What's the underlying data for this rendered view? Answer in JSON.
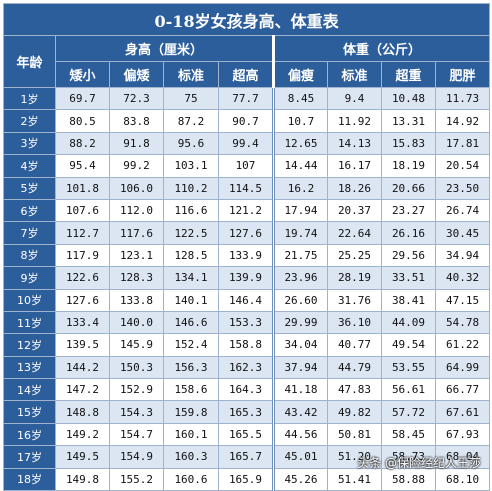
{
  "title": "0-18岁女孩身高、体重表",
  "age_header": "年龄",
  "height_group": "身高（厘米）",
  "weight_group": "体重（公斤）",
  "height_cols": [
    "矮小",
    "偏矮",
    "标准",
    "超高"
  ],
  "weight_cols": [
    "偏瘦",
    "标准",
    "超重",
    "肥胖"
  ],
  "rows": [
    {
      "age": "1岁",
      "h": [
        "69.7",
        "72.3",
        "75",
        "77.7"
      ],
      "w": [
        "8.45",
        "9.4",
        "10.48",
        "11.73"
      ]
    },
    {
      "age": "2岁",
      "h": [
        "80.5",
        "83.8",
        "87.2",
        "90.7"
      ],
      "w": [
        "10.7",
        "11.92",
        "13.31",
        "14.92"
      ]
    },
    {
      "age": "3岁",
      "h": [
        "88.2",
        "91.8",
        "95.6",
        "99.4"
      ],
      "w": [
        "12.65",
        "14.13",
        "15.83",
        "17.81"
      ]
    },
    {
      "age": "4岁",
      "h": [
        "95.4",
        "99.2",
        "103.1",
        "107"
      ],
      "w": [
        "14.44",
        "16.17",
        "18.19",
        "20.54"
      ]
    },
    {
      "age": "5岁",
      "h": [
        "101.8",
        "106.0",
        "110.2",
        "114.5"
      ],
      "w": [
        "16.2",
        "18.26",
        "20.66",
        "23.50"
      ]
    },
    {
      "age": "6岁",
      "h": [
        "107.6",
        "112.0",
        "116.6",
        "121.2"
      ],
      "w": [
        "17.94",
        "20.37",
        "23.27",
        "26.74"
      ]
    },
    {
      "age": "7岁",
      "h": [
        "112.7",
        "117.6",
        "122.5",
        "127.6"
      ],
      "w": [
        "19.74",
        "22.64",
        "26.16",
        "30.45"
      ]
    },
    {
      "age": "8岁",
      "h": [
        "117.9",
        "123.1",
        "128.5",
        "133.9"
      ],
      "w": [
        "21.75",
        "25.25",
        "29.56",
        "34.94"
      ]
    },
    {
      "age": "9岁",
      "h": [
        "122.6",
        "128.3",
        "134.1",
        "139.9"
      ],
      "w": [
        "23.96",
        "28.19",
        "33.51",
        "40.32"
      ]
    },
    {
      "age": "10岁",
      "h": [
        "127.6",
        "133.8",
        "140.1",
        "146.4"
      ],
      "w": [
        "26.60",
        "31.76",
        "38.41",
        "47.15"
      ]
    },
    {
      "age": "11岁",
      "h": [
        "133.4",
        "140.0",
        "146.6",
        "153.3"
      ],
      "w": [
        "29.99",
        "36.10",
        "44.09",
        "54.78"
      ]
    },
    {
      "age": "12岁",
      "h": [
        "139.5",
        "145.9",
        "152.4",
        "158.8"
      ],
      "w": [
        "34.04",
        "40.77",
        "49.54",
        "61.22"
      ]
    },
    {
      "age": "13岁",
      "h": [
        "144.2",
        "150.3",
        "156.3",
        "162.3"
      ],
      "w": [
        "37.94",
        "44.79",
        "53.55",
        "64.99"
      ]
    },
    {
      "age": "14岁",
      "h": [
        "147.2",
        "152.9",
        "158.6",
        "164.3"
      ],
      "w": [
        "41.18",
        "47.83",
        "56.61",
        "66.77"
      ]
    },
    {
      "age": "15岁",
      "h": [
        "148.8",
        "154.3",
        "159.8",
        "165.3"
      ],
      "w": [
        "43.42",
        "49.82",
        "57.72",
        "67.61"
      ]
    },
    {
      "age": "16岁",
      "h": [
        "149.2",
        "154.7",
        "160.1",
        "165.5"
      ],
      "w": [
        "44.56",
        "50.81",
        "58.45",
        "67.93"
      ]
    },
    {
      "age": "17岁",
      "h": [
        "149.5",
        "154.9",
        "160.3",
        "165.7"
      ],
      "w": [
        "45.01",
        "51.20",
        "58.73",
        "68.04"
      ]
    },
    {
      "age": "18岁",
      "h": [
        "149.8",
        "155.2",
        "160.6",
        "165.9"
      ],
      "w": [
        "45.26",
        "51.41",
        "58.88",
        "68.10"
      ]
    }
  ],
  "watermark": "头条 @保险经纪人王莎"
}
